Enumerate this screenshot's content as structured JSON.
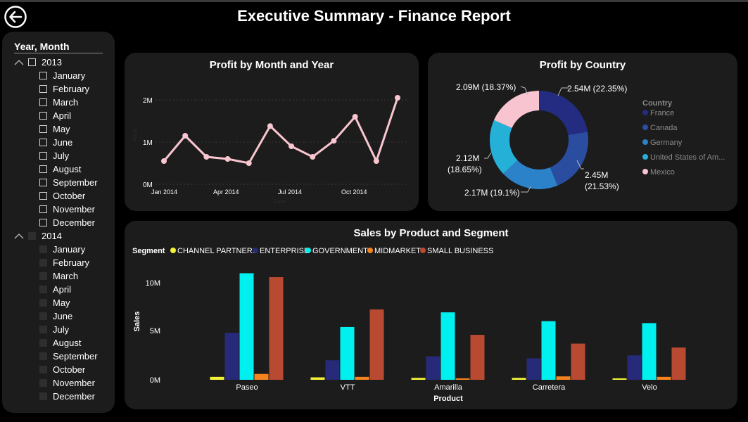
{
  "header": {
    "title": "Executive Summary - Finance Report",
    "back_icon": "back-arrow-icon"
  },
  "slicer": {
    "title": "Year, Month",
    "years": [
      {
        "label": "2013",
        "months": [
          "January",
          "February",
          "March",
          "April",
          "May",
          "June",
          "July",
          "August",
          "September",
          "October",
          "November",
          "December"
        ]
      },
      {
        "label": "2014",
        "months": [
          "January",
          "February",
          "March",
          "April",
          "May",
          "June",
          "July",
          "August",
          "September",
          "October",
          "November",
          "December"
        ]
      }
    ]
  },
  "profit_month": {
    "title": "Profit by Month and Year",
    "y_ticks": [
      "2M",
      "1M",
      "0M"
    ],
    "x_ticks": [
      "Jan 2014",
      "Apr 2014",
      "Jul 2014",
      "Oct 2014"
    ],
    "ylabel": "Profit",
    "xlabel": "Date"
  },
  "profit_country": {
    "title": "Profit by Country",
    "legend_title": "Country",
    "legend": [
      "France",
      "Canada",
      "Germany",
      "United States of Am...",
      "Mexico"
    ],
    "label_france": "2.54M (22.35%)",
    "label_canada_1": "2.45M",
    "label_canada_2": "(21.53%)",
    "label_germany": "2.17M (19.1%)",
    "label_usa_1": "2.12M",
    "label_usa_2": "(18.65%)",
    "label_mexico": "2.09M (18.37%)"
  },
  "sales_segment": {
    "title": "Sales by Product and Segment",
    "legend_title": "Segment",
    "y_ticks": [
      "10M",
      "5M",
      "0M"
    ],
    "ylabel": "Sales",
    "xlabel": "Product"
  },
  "chart_data": [
    {
      "type": "line",
      "title": "Profit by Month and Year",
      "x": [
        "Jan 2014",
        "Feb 2014",
        "Mar 2014",
        "Apr 2014",
        "May 2014",
        "Jun 2014",
        "Jul 2014",
        "Aug 2014",
        "Sep 2014",
        "Oct 2014",
        "Nov 2014",
        "Dec 2014"
      ],
      "values": [
        0.55,
        1.15,
        0.65,
        0.6,
        0.5,
        1.38,
        0.9,
        0.65,
        1.03,
        1.6,
        0.55,
        2.05
      ],
      "ylabel": "Profit",
      "xlabel": "Date",
      "ylim": [
        0,
        2.2
      ],
      "unit": "M",
      "color": "#f9c6cf",
      "grid": true
    },
    {
      "type": "pie",
      "title": "Profit by Country",
      "categories": [
        "France",
        "Canada",
        "Germany",
        "United States of Am...",
        "Mexico"
      ],
      "values": [
        2.54,
        2.45,
        2.17,
        2.12,
        2.09
      ],
      "percents": [
        22.35,
        21.53,
        19.1,
        18.65,
        18.37
      ],
      "colors": [
        "#232c80",
        "#2a4da0",
        "#2b82c8",
        "#25b0d8",
        "#f8c4d0"
      ],
      "legend": "right"
    },
    {
      "type": "bar",
      "title": "Sales by Product and Segment",
      "categories": [
        "Paseo",
        "VTT",
        "Amarilla",
        "Carretera",
        "Velo"
      ],
      "series": [
        {
          "name": "CHANNEL PARTNERS",
          "color": "#f2f23a",
          "values": [
            0.3,
            0.25,
            0.2,
            0.2,
            0.15
          ]
        },
        {
          "name": "ENTERPRISE",
          "color": "#272a78",
          "values": [
            4.8,
            2.0,
            2.4,
            2.2,
            2.5
          ]
        },
        {
          "name": "GOVERNMENT",
          "color": "#00f0f0",
          "values": [
            10.9,
            5.4,
            6.9,
            6.0,
            5.8
          ]
        },
        {
          "name": "MIDMARKET",
          "color": "#f58220",
          "values": [
            0.6,
            0.3,
            0.15,
            0.35,
            0.3
          ]
        },
        {
          "name": "SMALL BUSINESS",
          "color": "#b84a32",
          "values": [
            10.5,
            7.2,
            4.6,
            3.7,
            3.3
          ]
        }
      ],
      "ylabel": "Sales",
      "xlabel": "Product",
      "ylim": [
        0,
        12
      ],
      "unit": "M",
      "legend": "top-left"
    }
  ]
}
